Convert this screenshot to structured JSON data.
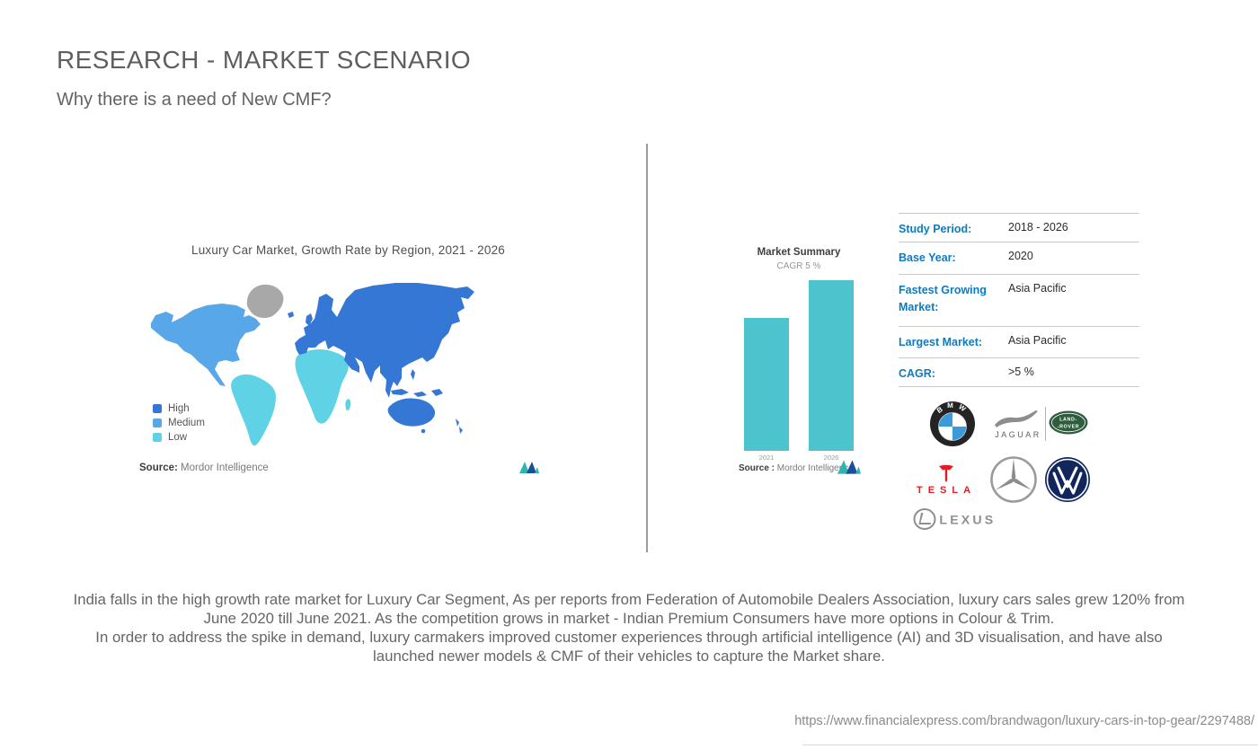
{
  "header": {
    "title": "RESEARCH - MARKET SCENARIO",
    "subtitle": "Why there is a need of New CMF?"
  },
  "chart_data": [
    {
      "type": "choropleth_map",
      "title": "Luxury Car Market, Growth Rate by Region, 2021 - 2026",
      "legend": [
        "High",
        "Medium",
        "Low"
      ],
      "colors": {
        "High": "#3577D4",
        "Medium": "#58A7E9",
        "Low": "#5FD3E5",
        "Neutral": "#A8A8A8"
      },
      "regions": [
        {
          "name": "North America",
          "level": "Medium"
        },
        {
          "name": "Greenland",
          "level": "Neutral"
        },
        {
          "name": "South America",
          "level": "Low"
        },
        {
          "name": "Africa",
          "level": "Low"
        },
        {
          "name": "Europe",
          "level": "High"
        },
        {
          "name": "Asia incl. Middle East & India",
          "level": "High"
        },
        {
          "name": "Australia & Oceania",
          "level": "High"
        }
      ],
      "source": "Mordor Intelligence",
      "legend_position": "bottom-left",
      "grid": false
    },
    {
      "type": "bar",
      "title": "Market Summary",
      "subtitle": "CAGR 5 %",
      "categories": [
        "2021",
        "2026"
      ],
      "values": [
        1,
        1.28
      ],
      "bar_color": "#4CC3CD",
      "source": "Mordor Intelligence",
      "grid": false
    }
  ],
  "map_panel": {
    "source_label": "Source:",
    "source_value": "Mordor Intelligence"
  },
  "bar_panel": {
    "source_label": "Source :",
    "source_value": "Mordor Intelligence"
  },
  "summary_table": {
    "rows": [
      {
        "label": "Study Period:",
        "value": "2018 - 2026"
      },
      {
        "label": "Base Year:",
        "value": "2020"
      },
      {
        "label": "Fastest Growing Market:",
        "value": "Asia Pacific"
      },
      {
        "label": "Largest Market:",
        "value": "Asia Pacific"
      },
      {
        "label": "CAGR:",
        "value": ">5 %"
      }
    ]
  },
  "brand_logos": {
    "bmw": {
      "name": "BMW",
      "wordmark": "BMW"
    },
    "jaguar": {
      "name": "Jaguar",
      "wordmark": "JAGUAR"
    },
    "land_rover": {
      "name": "Land Rover",
      "wordmark_top": "LAND-",
      "wordmark_bottom": "-ROVER"
    },
    "tesla": {
      "name": "Tesla",
      "wordmark": "TESLA"
    },
    "mercedes": {
      "name": "Mercedes-Benz"
    },
    "volkswagen": {
      "name": "Volkswagen"
    },
    "lexus": {
      "name": "Lexus",
      "wordmark": "LEXUS"
    }
  },
  "body_text": {
    "p1": "India falls in the high growth rate market for Luxury Car Segment, As per reports from Federation of Automobile Dealers Association, luxury cars sales grew 120% from June 2020 till June 2021. As the competition grows in market - Indian Premium Consumers have more options in Colour & Trim.",
    "p2": "In order to address the spike in demand, luxury carmakers improved customer experiences through artificial intelligence (AI) and 3D visualisation, and have also launched newer models & CMF of their vehicles to capture the Market share."
  },
  "footer": {
    "url": "https://www.financialexpress.com/brandwagon/luxury-cars-in-top-gear/2297488/"
  }
}
